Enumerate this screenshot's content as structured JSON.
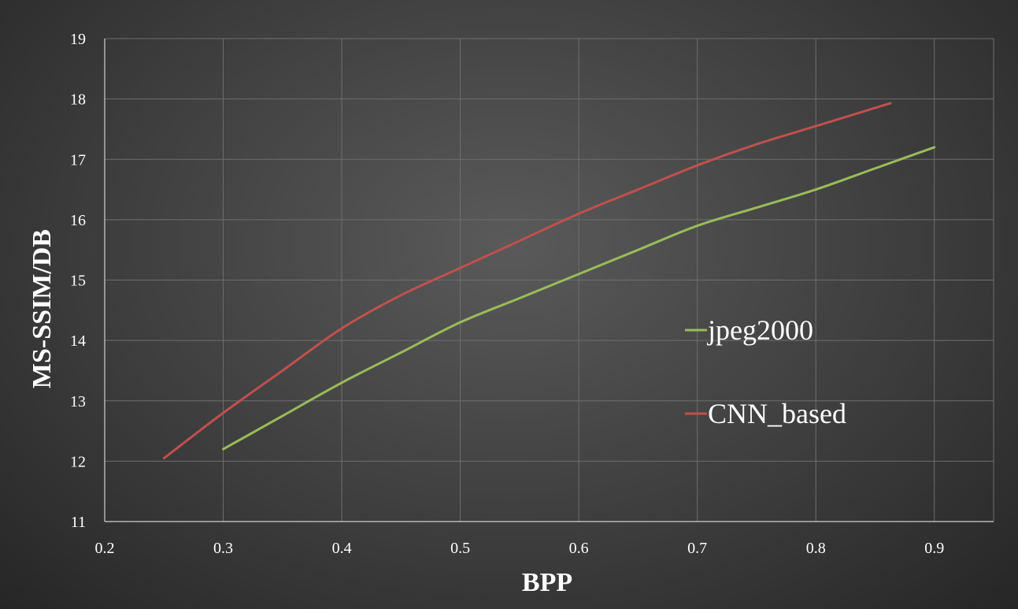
{
  "chart_data": {
    "type": "line",
    "xlabel": "BPP",
    "ylabel": "MS-SSIM/DB",
    "xlim": [
      0.2,
      0.95
    ],
    "ylim": [
      11,
      19
    ],
    "xticks": [
      "0.2",
      "0.3",
      "0.4",
      "0.5",
      "0.6",
      "0.7",
      "0.8",
      "0.9"
    ],
    "yticks": [
      "11",
      "12",
      "13",
      "14",
      "15",
      "16",
      "17",
      "18",
      "19"
    ],
    "grid": true,
    "legend_position": "right",
    "series": [
      {
        "name": "jpeg2000",
        "color": "#9bbb59",
        "x": [
          0.3,
          0.35,
          0.4,
          0.45,
          0.5,
          0.55,
          0.6,
          0.65,
          0.7,
          0.75,
          0.8,
          0.85,
          0.9
        ],
        "y": [
          12.2,
          12.75,
          13.3,
          13.8,
          14.3,
          14.7,
          15.1,
          15.5,
          15.9,
          16.2,
          16.5,
          16.85,
          17.2
        ]
      },
      {
        "name": "CNN_based",
        "color": "#c0504d",
        "x": [
          0.25,
          0.3,
          0.35,
          0.4,
          0.45,
          0.5,
          0.55,
          0.6,
          0.65,
          0.7,
          0.75,
          0.8,
          0.863
        ],
        "y": [
          12.05,
          12.8,
          13.5,
          14.2,
          14.75,
          15.2,
          15.65,
          16.1,
          16.5,
          16.9,
          17.25,
          17.55,
          17.93
        ]
      }
    ]
  }
}
